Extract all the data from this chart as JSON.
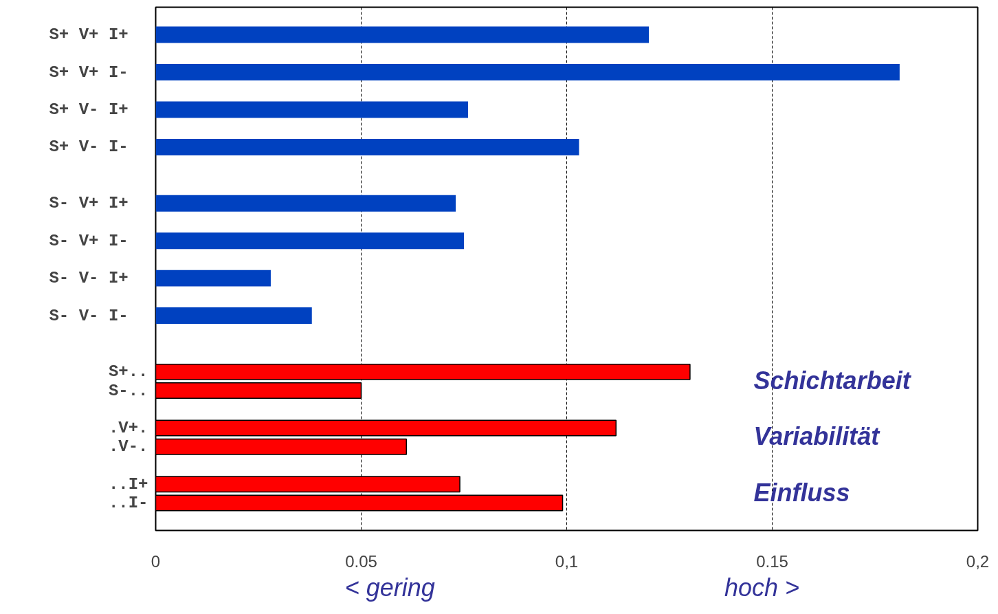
{
  "chart_data": {
    "type": "bar",
    "orientation": "horizontal",
    "categories": [
      "S+  V+  I+",
      null,
      "S+  V+  I-",
      null,
      "S+  V-  I+",
      null,
      "S+  V-  I-",
      null,
      null,
      "S-  V+  I+",
      null,
      "S-  V+  I-",
      null,
      "S-  V-  I+",
      null,
      "S-  V-  I-",
      null,
      null,
      "S+..",
      "S-..",
      null,
      ".V+.",
      ".V-.",
      null,
      "..I+",
      "..I-"
    ],
    "series": [
      {
        "color": "#0041c0",
        "values": [
          0.12,
          null,
          0.181,
          null,
          0.076,
          null,
          0.103,
          null,
          null,
          0.073,
          null,
          0.075,
          null,
          0.028,
          null,
          0.038,
          null,
          null,
          null,
          null,
          null,
          null,
          null,
          null,
          null,
          null
        ]
      },
      {
        "color": "#ff0000",
        "values": [
          null,
          null,
          null,
          null,
          null,
          null,
          null,
          null,
          null,
          null,
          null,
          null,
          null,
          null,
          null,
          null,
          null,
          null,
          0.13,
          0.05,
          null,
          0.112,
          0.061,
          null,
          0.074,
          0.099
        ]
      }
    ],
    "xlim": [
      0,
      0.2
    ],
    "xticks": [
      0,
      {
        "value": 0.05,
        "label": "0.05"
      },
      {
        "value": 0.1,
        "label": "0,1"
      },
      {
        "value": 0.15,
        "label": "0.15"
      },
      {
        "value": 0.2,
        "label": "0,2"
      }
    ],
    "grid": "x",
    "annotations": [
      "Schichtarbeit",
      "Variabilität",
      "Einfluss",
      "< gering",
      "hoch >"
    ]
  }
}
